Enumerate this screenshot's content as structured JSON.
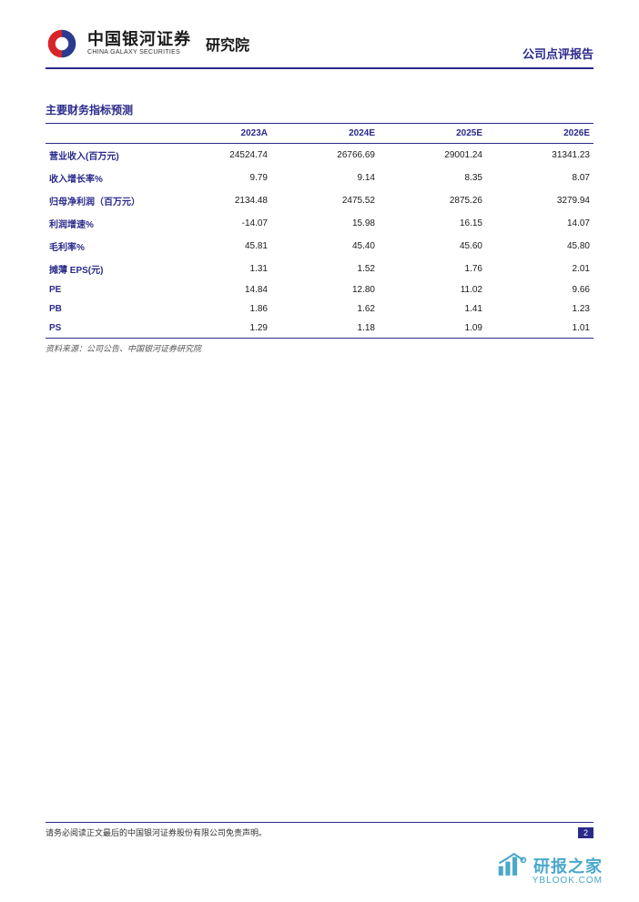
{
  "header": {
    "company_cn": "中国银河证券",
    "company_en": "CHINA GALAXY SECURITIES",
    "institute": "研究院",
    "report_type": "公司点评报告",
    "logo_colors": {
      "red": "#d8232a",
      "blue": "#2a3b8f"
    }
  },
  "section": {
    "title": "主要财务指标预测",
    "source": "资料来源：公司公告、中国银河证券研究院"
  },
  "table": {
    "type": "table",
    "header_color": "#2a2a8c",
    "border_color": "#2a2a8c",
    "font_size": 10,
    "columns": [
      "",
      "2023A",
      "2024E",
      "2025E",
      "2026E"
    ],
    "rows": [
      [
        "营业收入(百万元)",
        "24524.74",
        "26766.69",
        "29001.24",
        "31341.23"
      ],
      [
        "收入增长率%",
        "9.79",
        "9.14",
        "8.35",
        "8.07"
      ],
      [
        "归母净利润（百万元）",
        "2134.48",
        "2475.52",
        "2875.26",
        "3279.94"
      ],
      [
        "利润增速%",
        "-14.07",
        "15.98",
        "16.15",
        "14.07"
      ],
      [
        "毛利率%",
        "45.81",
        "45.40",
        "45.60",
        "45.80"
      ],
      [
        "摊薄 EPS(元)",
        "1.31",
        "1.52",
        "1.76",
        "2.01"
      ],
      [
        "PE",
        "14.84",
        "12.80",
        "11.02",
        "9.66"
      ],
      [
        "PB",
        "1.86",
        "1.62",
        "1.41",
        "1.23"
      ],
      [
        "PS",
        "1.29",
        "1.18",
        "1.09",
        "1.01"
      ]
    ]
  },
  "footer": {
    "disclaimer": "请务必阅读正文最后的中国银河证券股份有限公司免责声明。",
    "page_number": "2"
  },
  "watermark": {
    "cn": "研报之家",
    "en": "YBLOOK.COM",
    "icon_color": "#4aa8c9"
  },
  "colors": {
    "brand_blue": "#2a2a8c",
    "text": "#1a1a1a",
    "background": "#ffffff"
  }
}
